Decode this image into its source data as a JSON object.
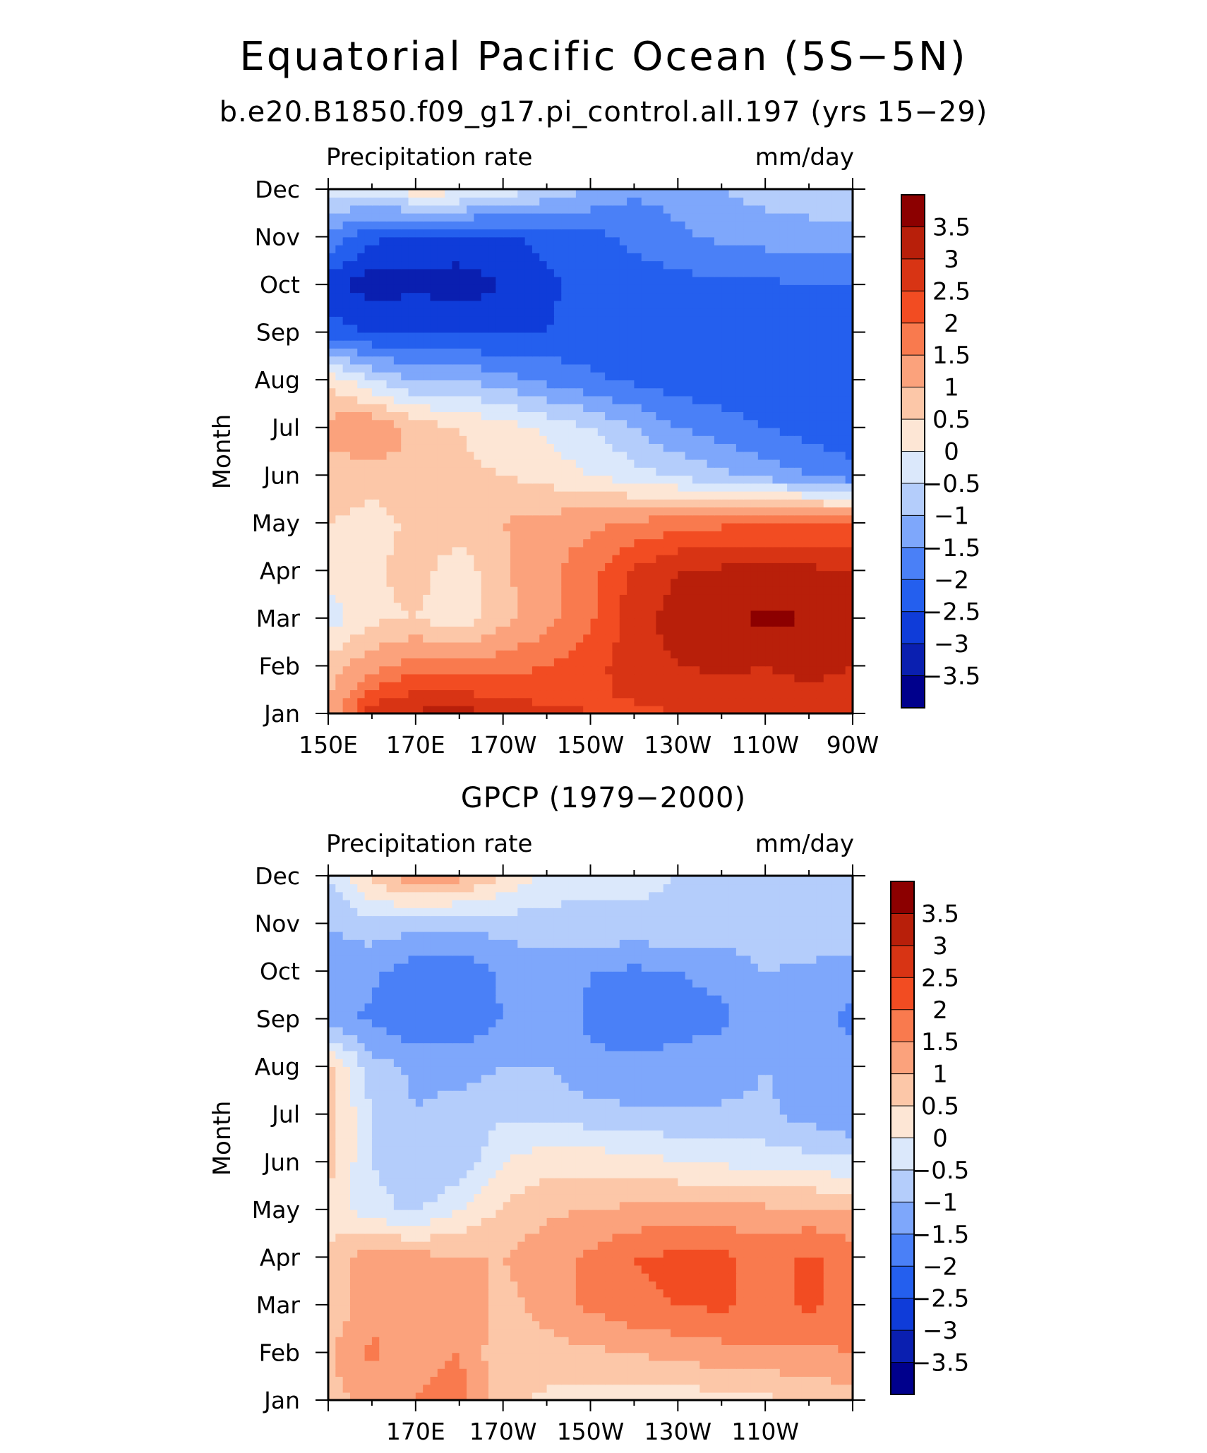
{
  "header": {
    "title": "Equatorial Pacific Ocean (5S−5N)",
    "subtitle": "b.e20.B1850.f09_g17.pi_control.all.197 (yrs 15−29)"
  },
  "colors": {
    "levels": [
      -3.5,
      -3,
      -2.5,
      -2,
      -1.5,
      -1,
      -0.5,
      0,
      0.5,
      1,
      1.5,
      2,
      2.5,
      3,
      3.5
    ],
    "palette": [
      "#00008c",
      "#0a1fb0",
      "#0f3cd9",
      "#245fee",
      "#4a80f7",
      "#7ea7fb",
      "#b4cdfb",
      "#dbe8fb",
      "#fde6d5",
      "#fcc7a8",
      "#fba27c",
      "#f97a4e",
      "#f24c22",
      "#d83414",
      "#b81f0a",
      "#8c0000"
    ]
  },
  "chart_data": [
    {
      "type": "heatmap",
      "title": "",
      "left_label": "Precipitation rate",
      "right_label": "mm/day",
      "ylabel": "Month",
      "xlabel": "",
      "x": [
        150,
        160,
        170,
        180,
        190,
        200,
        210,
        220,
        230,
        240,
        250,
        260,
        270
      ],
      "x_ticks": [
        150,
        170,
        190,
        210,
        230,
        250,
        270
      ],
      "x_tick_labels": [
        "150E",
        "170E",
        "170W",
        "150W",
        "130W",
        "110W",
        "90W"
      ],
      "y_labels": [
        "Jan",
        "Feb",
        "Mar",
        "Apr",
        "May",
        "Jun",
        "Jul",
        "Aug",
        "Sep",
        "Oct",
        "Nov",
        "Dec"
      ],
      "colorbar_labels": [
        "3.5",
        "3",
        "2.5",
        "2",
        "1.5",
        "1",
        "0.5",
        "0",
        "−0.5",
        "−1",
        "−1.5",
        "−2",
        "−2.5",
        "−3",
        "−3.5"
      ],
      "values": [
        [
          1.0,
          2.8,
          3.1,
          3.2,
          2.9,
          2.6,
          2.5,
          2.4,
          2.5,
          2.5,
          2.6,
          2.6,
          2.5
        ],
        [
          0.8,
          1.3,
          1.8,
          1.6,
          1.8,
          2.0,
          2.3,
          2.8,
          3.0,
          3.1,
          3.0,
          3.2,
          3.0
        ],
        [
          -0.3,
          0.4,
          0.5,
          0.2,
          0.8,
          1.3,
          1.9,
          2.8,
          3.2,
          3.4,
          3.6,
          3.5,
          3.3
        ],
        [
          0.3,
          0.4,
          0.7,
          0.2,
          0.9,
          1.4,
          1.8,
          2.6,
          3.0,
          3.1,
          3.1,
          3.1,
          3.0
        ],
        [
          0.5,
          0.3,
          0.6,
          0.8,
          1.0,
          1.2,
          1.4,
          1.6,
          1.8,
          1.9,
          2.0,
          2.0,
          2.0
        ],
        [
          0.8,
          0.7,
          1.0,
          0.6,
          0.5,
          0.3,
          0.0,
          -0.3,
          -0.6,
          -0.9,
          -1.2,
          -1.5,
          -1.9
        ],
        [
          1.2,
          1.5,
          0.8,
          0.5,
          0.2,
          -0.1,
          -0.5,
          -1.0,
          -1.5,
          -1.8,
          -2.0,
          -2.2,
          -2.3
        ],
        [
          0.4,
          -0.5,
          -1.0,
          -1.0,
          -1.3,
          -1.6,
          -1.9,
          -2.1,
          -2.3,
          -2.3,
          -2.4,
          -2.4,
          -2.4
        ],
        [
          -2.3,
          -2.5,
          -2.5,
          -2.6,
          -2.6,
          -2.5,
          -2.3,
          -2.2,
          -2.2,
          -2.2,
          -2.2,
          -2.2,
          -2.2
        ],
        [
          -2.8,
          -3.3,
          -3.1,
          -3.3,
          -3.0,
          -2.6,
          -2.3,
          -2.2,
          -2.2,
          -2.1,
          -2.1,
          -2.0,
          -2.0
        ],
        [
          -1.6,
          -2.4,
          -2.7,
          -2.6,
          -2.6,
          -2.3,
          -2.2,
          -1.9,
          -1.6,
          -1.4,
          -1.3,
          -1.3,
          -1.2
        ],
        [
          -0.4,
          -0.2,
          0.3,
          0.2,
          -0.2,
          -0.6,
          -1.0,
          -1.4,
          -1.3,
          -1.0,
          -0.8,
          -0.6,
          -0.5
        ]
      ]
    },
    {
      "type": "heatmap",
      "title": "GPCP (1979−2000)",
      "left_label": "Precipitation rate",
      "right_label": "mm/day",
      "ylabel": "Month",
      "xlabel": "",
      "x": [
        150,
        160,
        170,
        180,
        190,
        200,
        210,
        220,
        230,
        240,
        250,
        260,
        270
      ],
      "x_ticks": [
        170,
        190,
        210,
        230,
        250
      ],
      "x_tick_labels": [
        "170E",
        "170W",
        "150W",
        "130W",
        "110W"
      ],
      "y_labels": [
        "Jan",
        "Feb",
        "Mar",
        "Apr",
        "May",
        "Jun",
        "Jul",
        "Aug",
        "Sep",
        "Oct",
        "Nov",
        "Dec"
      ],
      "colorbar_labels": [
        "3.5",
        "3",
        "2.5",
        "2",
        "1.5",
        "1",
        "0.5",
        "0",
        "−0.5",
        "−1",
        "−1.5",
        "−2",
        "−2.5",
        "−3",
        "−3.5"
      ],
      "values": [
        [
          0.8,
          1.2,
          1.5,
          1.8,
          0.6,
          0.4,
          0.3,
          0.2,
          0.2,
          0.3,
          0.4,
          0.5,
          0.8
        ],
        [
          0.9,
          1.6,
          1.2,
          1.5,
          0.6,
          0.8,
          0.9,
          1.0,
          1.2,
          1.3,
          1.4,
          1.4,
          1.5
        ],
        [
          0.6,
          1.4,
          1.2,
          1.5,
          0.8,
          1.2,
          1.6,
          1.9,
          2.0,
          2.1,
          1.8,
          2.1,
          1.8
        ],
        [
          0.6,
          1.3,
          1.2,
          1.0,
          1.0,
          1.3,
          1.6,
          2.0,
          2.1,
          2.1,
          1.8,
          2.1,
          1.8
        ],
        [
          0.3,
          -0.3,
          -0.6,
          0.0,
          0.6,
          0.9,
          1.0,
          1.1,
          1.2,
          1.2,
          1.1,
          1.1,
          1.0
        ],
        [
          0.7,
          -0.5,
          -1.0,
          -0.9,
          0.0,
          0.3,
          0.3,
          0.2,
          0.0,
          -0.1,
          -0.2,
          -0.3,
          -0.4
        ],
        [
          0.8,
          -0.5,
          -1.0,
          -0.8,
          -0.6,
          -0.6,
          -0.8,
          -0.9,
          -0.9,
          -0.9,
          -0.9,
          -1.2,
          -1.5
        ],
        [
          0.7,
          -0.8,
          -1.1,
          -1.2,
          -1.0,
          -1.0,
          -1.4,
          -1.4,
          -1.4,
          -1.3,
          -1.0,
          -1.2,
          -1.3
        ],
        [
          -1.3,
          -1.6,
          -2.0,
          -1.9,
          -1.5,
          -1.2,
          -1.6,
          -1.7,
          -1.6,
          -1.6,
          -1.2,
          -1.3,
          -1.6
        ],
        [
          -1.2,
          -1.4,
          -1.8,
          -1.9,
          -1.4,
          -1.2,
          -1.5,
          -1.6,
          -1.5,
          -1.4,
          -1.0,
          -1.1,
          -1.3
        ],
        [
          -1.0,
          -0.7,
          -0.8,
          -0.9,
          -0.8,
          -0.7,
          -0.6,
          -0.6,
          -0.6,
          -0.6,
          -0.6,
          -0.6,
          -0.6
        ],
        [
          -0.5,
          0.7,
          1.4,
          1.2,
          0.5,
          -0.2,
          -0.4,
          -0.4,
          -0.5,
          -0.5,
          -0.5,
          -0.5,
          -0.5
        ]
      ]
    }
  ]
}
